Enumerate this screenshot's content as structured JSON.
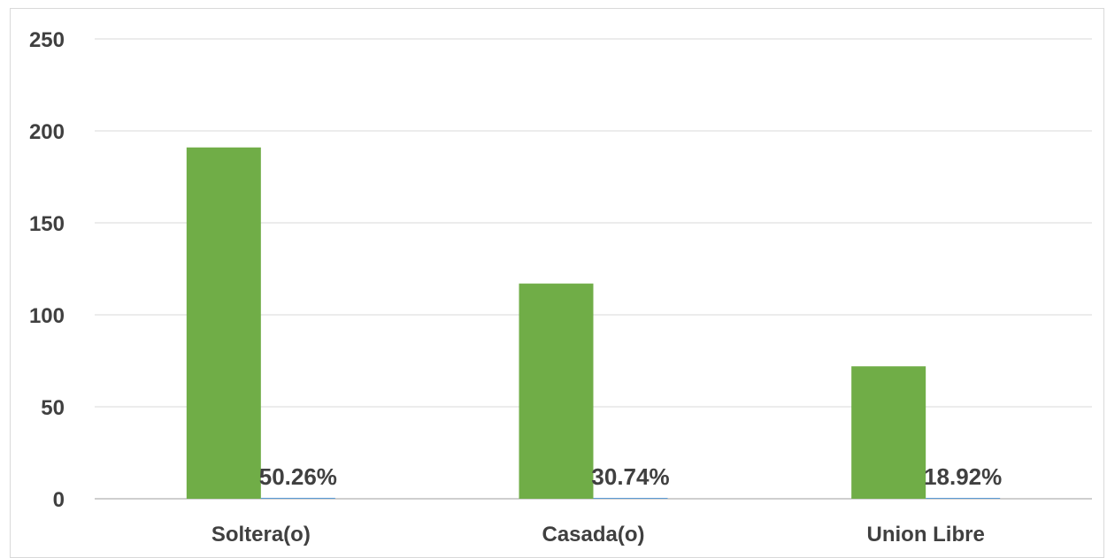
{
  "chart_data": {
    "type": "bar",
    "categories": [
      "Soltera(o)",
      "Casada(o)",
      "Union Libre"
    ],
    "series": [
      {
        "values": [
          191,
          117,
          72
        ],
        "color": "#70ad47"
      },
      {
        "values": [
          0.5026,
          0.3074,
          0.1892
        ],
        "labels": [
          "50.26%",
          "30.74%",
          "18.92%"
        ],
        "color": "#5b9bd5"
      }
    ],
    "yticks": [
      "0",
      "50",
      "100",
      "150",
      "200",
      "250"
    ],
    "ylim": [
      0,
      250
    ],
    "grid": true,
    "legend": false,
    "title": "",
    "xlabel": "",
    "ylabel": ""
  }
}
